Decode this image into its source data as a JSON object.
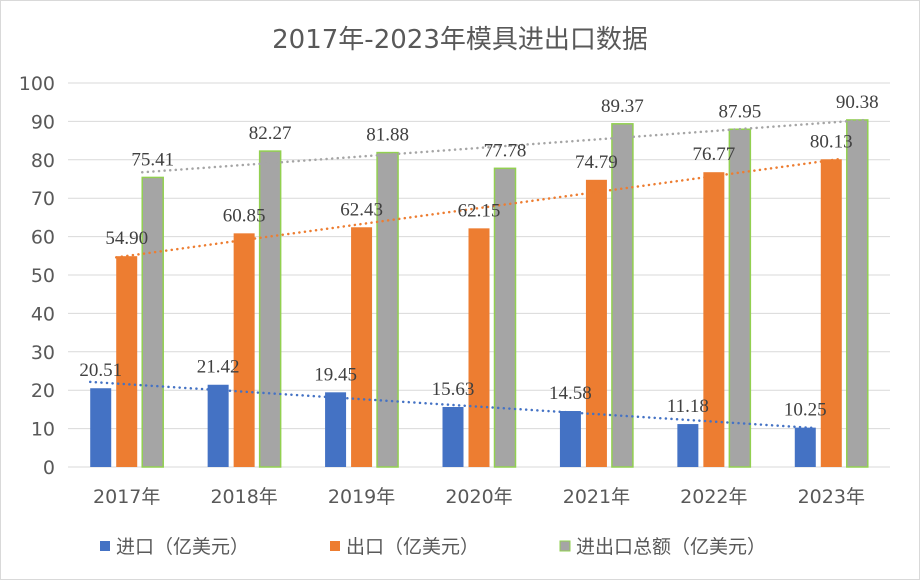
{
  "chart_data": {
    "type": "bar",
    "title": "2017年-2023年模具进出口数据",
    "categories": [
      "2017年",
      "2018年",
      "2019年",
      "2020年",
      "2021年",
      "2022年",
      "2023年"
    ],
    "series": [
      {
        "name": "进口（亿美元）",
        "color": "#4472c4",
        "values": [
          20.51,
          21.42,
          19.45,
          15.63,
          14.58,
          11.18,
          10.25
        ],
        "labels": [
          "20.51",
          "21.42",
          "19.45",
          "15.63",
          "14.58",
          "11.18",
          "10.25"
        ]
      },
      {
        "name": "出口（亿美元）",
        "color": "#ed7d31",
        "values": [
          54.9,
          60.85,
          62.43,
          62.15,
          74.79,
          76.77,
          80.13
        ],
        "labels": [
          "54.90",
          "60.85",
          "62.43",
          "62.15",
          "74.79",
          "76.77",
          "80.13"
        ]
      },
      {
        "name": "进出口总额（亿美元）",
        "color": "#a5a5a5",
        "border": "#92d050",
        "values": [
          75.41,
          82.27,
          81.88,
          77.78,
          89.37,
          87.95,
          90.38
        ],
        "labels": [
          "75.41",
          "82.27",
          "81.88",
          "77.78",
          "89.37",
          "87.95",
          "90.38"
        ]
      }
    ],
    "trendlines": "linear, dotted, per series",
    "ylim": [
      0,
      100
    ],
    "yticks": [
      "0",
      "10",
      "20",
      "30",
      "40",
      "50",
      "60",
      "70",
      "80",
      "90",
      "100"
    ],
    "grid": true,
    "legend": "bottom"
  }
}
